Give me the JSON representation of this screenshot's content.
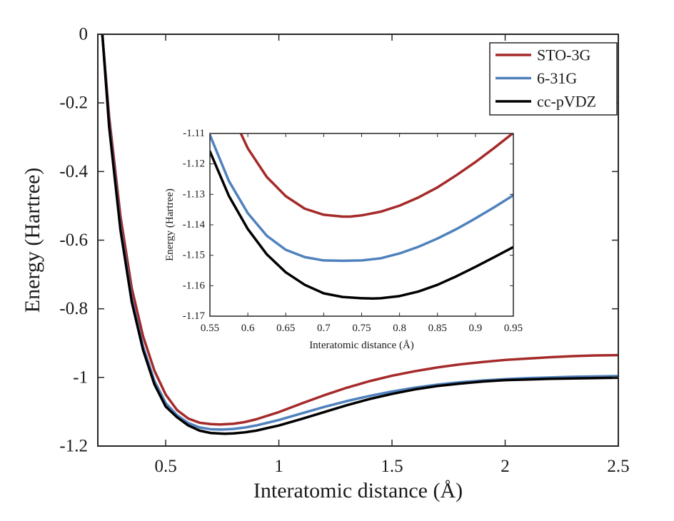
{
  "chart_data": [
    {
      "type": "line",
      "xlabel": "Interatomic distance (Å)",
      "ylabel": "Energy (Hartree)",
      "xlim": [
        0.2,
        2.5
      ],
      "ylim": [
        -1.2,
        0
      ],
      "xticks": [
        0.5,
        1,
        1.5,
        2,
        2.5
      ],
      "xtick_labels": [
        "0.5",
        "1",
        "1.5",
        "2",
        "2.5"
      ],
      "yticks": [
        0,
        -0.2,
        -0.4,
        -0.6,
        -0.8,
        -1,
        -1.2
      ],
      "ytick_labels": [
        "0",
        "-0.2",
        "-0.4",
        "-0.6",
        "-0.8",
        "-1",
        "-1.2"
      ],
      "grid": false,
      "legend": "top-right",
      "series": [
        {
          "name": "STO-3G",
          "color": "#a52a2a",
          "x": [
            0.22,
            0.25,
            0.3,
            0.35,
            0.4,
            0.45,
            0.5,
            0.55,
            0.6,
            0.65,
            0.7,
            0.74,
            0.8,
            0.85,
            0.9,
            1.0,
            1.1,
            1.2,
            1.3,
            1.4,
            1.5,
            1.6,
            1.7,
            1.8,
            1.9,
            2.0,
            2.1,
            2.2,
            2.3,
            2.4,
            2.5
          ],
          "y": [
            0.0,
            -0.24,
            -0.53,
            -0.74,
            -0.88,
            -0.98,
            -1.05,
            -1.095,
            -1.12,
            -1.132,
            -1.136,
            -1.137,
            -1.135,
            -1.13,
            -1.122,
            -1.101,
            -1.076,
            -1.052,
            -1.03,
            -1.011,
            -0.995,
            -0.982,
            -0.971,
            -0.962,
            -0.955,
            -0.949,
            -0.945,
            -0.941,
            -0.938,
            -0.936,
            -0.935
          ]
        },
        {
          "name": "6-31G",
          "color": "#4f81bd",
          "x": [
            0.22,
            0.25,
            0.3,
            0.35,
            0.4,
            0.45,
            0.5,
            0.55,
            0.6,
            0.65,
            0.7,
            0.75,
            0.8,
            0.85,
            0.9,
            1.0,
            1.1,
            1.2,
            1.3,
            1.4,
            1.5,
            1.6,
            1.7,
            1.8,
            1.9,
            2.0,
            2.1,
            2.2,
            2.3,
            2.4,
            2.5
          ],
          "y": [
            0.0,
            -0.26,
            -0.56,
            -0.77,
            -0.91,
            -1.01,
            -1.075,
            -1.11,
            -1.133,
            -1.146,
            -1.151,
            -1.152,
            -1.15,
            -1.146,
            -1.14,
            -1.124,
            -1.105,
            -1.086,
            -1.069,
            -1.054,
            -1.041,
            -1.03,
            -1.021,
            -1.014,
            -1.009,
            -1.005,
            -1.002,
            -1.0,
            -0.998,
            -0.997,
            -0.996
          ]
        },
        {
          "name": "cc-pVDZ",
          "color": "#000000",
          "x": [
            0.22,
            0.25,
            0.3,
            0.35,
            0.4,
            0.45,
            0.5,
            0.55,
            0.6,
            0.65,
            0.7,
            0.76,
            0.8,
            0.85,
            0.9,
            1.0,
            1.1,
            1.2,
            1.3,
            1.4,
            1.5,
            1.6,
            1.7,
            1.8,
            1.9,
            2.0,
            2.1,
            2.2,
            2.3,
            2.4,
            2.5
          ],
          "y": [
            0.0,
            -0.27,
            -0.57,
            -0.78,
            -0.92,
            -1.02,
            -1.085,
            -1.116,
            -1.14,
            -1.155,
            -1.162,
            -1.164,
            -1.163,
            -1.16,
            -1.155,
            -1.14,
            -1.121,
            -1.101,
            -1.081,
            -1.063,
            -1.048,
            -1.035,
            -1.025,
            -1.018,
            -1.012,
            -1.008,
            -1.006,
            -1.004,
            -1.003,
            -1.002,
            -1.001
          ]
        }
      ]
    },
    {
      "type": "line",
      "xlabel": "Interatomic distance (Å)",
      "ylabel": "Energy (Hartree)",
      "xlim": [
        0.55,
        0.95
      ],
      "ylim": [
        -1.17,
        -1.11
      ],
      "xticks": [
        0.55,
        0.6,
        0.65,
        0.7,
        0.75,
        0.8,
        0.85,
        0.9,
        0.95
      ],
      "xtick_labels": [
        "0.55",
        "0.6",
        "0.65",
        "0.7",
        "0.75",
        "0.8",
        "0.85",
        "0.9",
        "0.95"
      ],
      "yticks": [
        -1.11,
        -1.12,
        -1.13,
        -1.14,
        -1.15,
        -1.16,
        -1.17
      ],
      "ytick_labels": [
        "-1.11",
        "-1.12",
        "-1.13",
        "-1.14",
        "-1.15",
        "-1.16",
        "-1.17"
      ],
      "grid": false,
      "series": [
        {
          "color": "#a52a2a",
          "x": [
            0.5908,
            0.6,
            0.625,
            0.65,
            0.675,
            0.7,
            0.725,
            0.735,
            0.75,
            0.775,
            0.8,
            0.825,
            0.85,
            0.875,
            0.9,
            0.925,
            0.95
          ],
          "y": [
            -1.11,
            -1.1149,
            -1.1243,
            -1.1306,
            -1.1347,
            -1.1367,
            -1.1373,
            -1.1373,
            -1.1369,
            -1.1357,
            -1.1337,
            -1.131,
            -1.1277,
            -1.1237,
            -1.1194,
            -1.1147,
            -1.1098
          ]
        },
        {
          "color": "#4f81bd",
          "x": [
            0.55,
            0.575,
            0.6,
            0.625,
            0.65,
            0.675,
            0.7,
            0.725,
            0.75,
            0.775,
            0.8,
            0.825,
            0.85,
            0.875,
            0.9,
            0.925,
            0.95
          ],
          "y": [
            -1.1105,
            -1.1256,
            -1.1362,
            -1.1436,
            -1.1482,
            -1.1506,
            -1.1517,
            -1.1518,
            -1.1517,
            -1.151,
            -1.1494,
            -1.1472,
            -1.1445,
            -1.1414,
            -1.1379,
            -1.1342,
            -1.1303
          ]
        },
        {
          "color": "#000000",
          "x": [
            0.55,
            0.575,
            0.6,
            0.625,
            0.65,
            0.675,
            0.7,
            0.725,
            0.75,
            0.765,
            0.775,
            0.8,
            0.825,
            0.85,
            0.875,
            0.9,
            0.925,
            0.95
          ],
          "y": [
            -1.1159,
            -1.1305,
            -1.1414,
            -1.1497,
            -1.1556,
            -1.1597,
            -1.1625,
            -1.1637,
            -1.1641,
            -1.1642,
            -1.1641,
            -1.1634,
            -1.1619,
            -1.1597,
            -1.1569,
            -1.1538,
            -1.1506,
            -1.1473
          ]
        }
      ]
    }
  ]
}
